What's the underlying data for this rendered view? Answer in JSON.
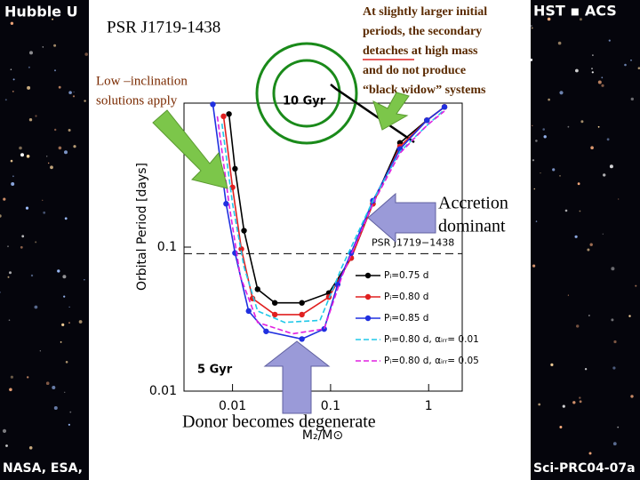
{
  "slide": {
    "banners": [
      "Hubble U",
      "HST ▪ ACS",
      "NASA, ESA,",
      "Sci-PRC04-07a"
    ],
    "title": "PSR  J1719-1438",
    "low_inclination": [
      "Low –inclination",
      "solutions apply"
    ],
    "detach_note": [
      "At slightly larger initial",
      "periods, the secondary",
      "detaches at high mass",
      "and do not produce",
      "“black widow” systems"
    ],
    "accretion": [
      "Accretion",
      "dominant"
    ],
    "donor": "Donor becomes degenerate"
  },
  "chart_data": {
    "type": "line",
    "xlabel": "M₂/M⊙",
    "ylabel": "Orbital Period [days]",
    "log_x": true,
    "log_y": true,
    "xlim": [
      0.0032,
      2.2
    ],
    "ylim": [
      0.01,
      1
    ],
    "xticks": [
      0.01,
      0.1,
      1
    ],
    "yticks": [
      0.01,
      0.1
    ],
    "reference_line": {
      "value": 0.09,
      "label": "PSR J1719−1438"
    },
    "annotations": [
      "10 Gyr",
      "5 Gyr"
    ],
    "series": [
      {
        "name": "Pᵢ=0.75 d",
        "color": "#000000",
        "dashed": false,
        "markers": true,
        "x": [
          0.0092,
          0.0106,
          0.0131,
          0.018,
          0.027,
          0.051,
          0.096,
          0.162,
          0.27,
          0.51,
          0.96,
          1.45
        ],
        "values": [
          0.84,
          0.35,
          0.13,
          0.051,
          0.041,
          0.041,
          0.048,
          0.084,
          0.2,
          0.53,
          0.76,
          0.94
        ]
      },
      {
        "name": "Pᵢ=0.80 d",
        "color": "#e02020",
        "dashed": false,
        "markers": true,
        "x": [
          0.0081,
          0.01,
          0.0123,
          0.016,
          0.027,
          0.051,
          0.096,
          0.162,
          0.27,
          0.51,
          0.96,
          1.45
        ],
        "values": [
          0.81,
          0.26,
          0.097,
          0.044,
          0.034,
          0.034,
          0.045,
          0.084,
          0.2,
          0.5,
          0.76,
          0.94
        ]
      },
      {
        "name": "Pᵢ=0.85 d",
        "color": "#2030e0",
        "dashed": false,
        "markers": true,
        "x": [
          0.0063,
          0.0086,
          0.0106,
          0.0146,
          0.022,
          0.051,
          0.086,
          0.118,
          0.162,
          0.27,
          0.51,
          0.96,
          1.45
        ],
        "values": [
          0.98,
          0.2,
          0.091,
          0.036,
          0.026,
          0.023,
          0.027,
          0.055,
          0.091,
          0.21,
          0.48,
          0.76,
          0.94
        ]
      },
      {
        "name": "Pᵢ=0.80 d,  αᵢᵣᵣ= 0.01",
        "color": "#20c8e8",
        "dashed": true,
        "markers": false,
        "x": [
          0.0078,
          0.01,
          0.0131,
          0.018,
          0.034,
          0.078,
          0.131,
          0.27,
          0.51,
          0.96,
          1.45
        ],
        "values": [
          0.72,
          0.2,
          0.073,
          0.036,
          0.03,
          0.031,
          0.073,
          0.21,
          0.46,
          0.7,
          0.9
        ]
      },
      {
        "name": "Pᵢ=0.80 d,  αᵢᵣᵣ= 0.05",
        "color": "#e020e0",
        "dashed": true,
        "markers": false,
        "x": [
          0.007,
          0.0092,
          0.012,
          0.018,
          0.041,
          0.086,
          0.131,
          0.27,
          0.51,
          0.96,
          1.45
        ],
        "values": [
          0.81,
          0.2,
          0.063,
          0.03,
          0.025,
          0.027,
          0.063,
          0.2,
          0.45,
          0.7,
          0.88
        ]
      }
    ]
  }
}
